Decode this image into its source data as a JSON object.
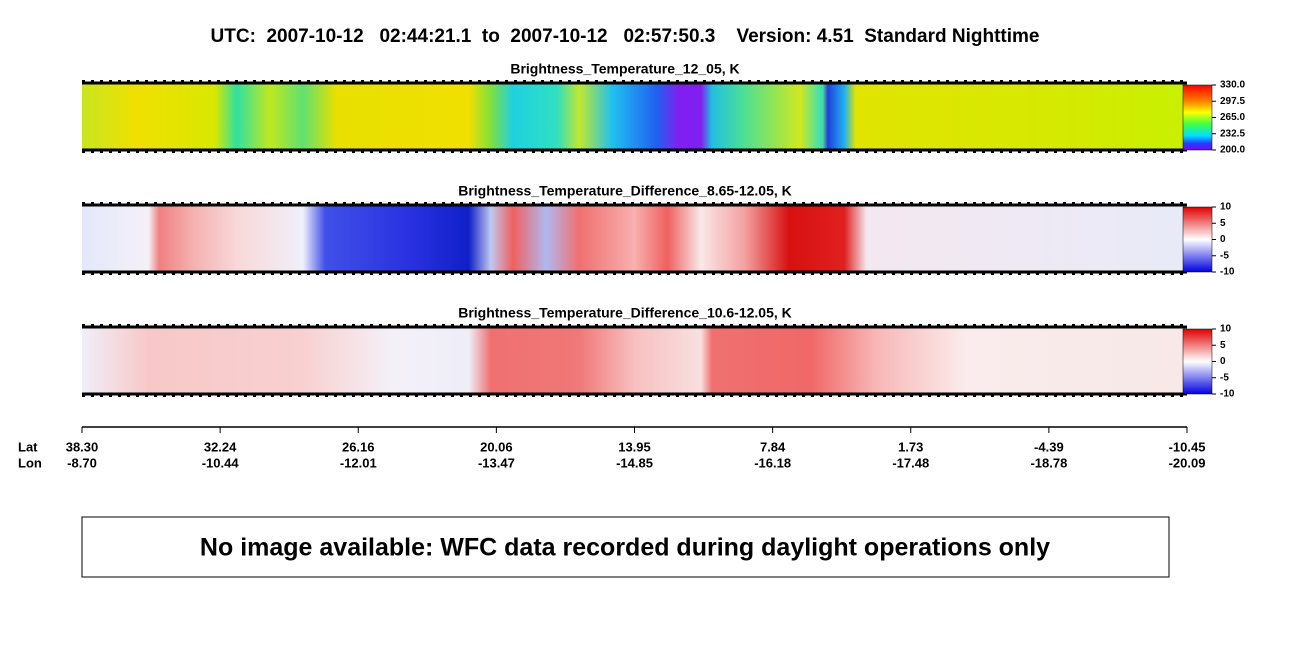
{
  "header": {
    "title": "UTC:  2007-10-12   02:44:21.1  to  2007-10-12   02:57:50.3    Version: 4.51  Standard Nighttime"
  },
  "panels": [
    {
      "title": "Brightness_Temperature_12_05, K",
      "colorbar": [
        "330.0",
        "297.5",
        "265.0",
        "232.5",
        "200.0"
      ]
    },
    {
      "title": "Brightness_Temperature_Difference_8.65-12.05, K",
      "colorbar": [
        "10",
        "5",
        "0",
        "-5",
        "-10"
      ]
    },
    {
      "title": "Brightness_Temperature_Difference_10.6-12.05, K",
      "colorbar": [
        "10",
        "5",
        "0",
        "-5",
        "-10"
      ]
    }
  ],
  "axis": {
    "lat_label": "Lat",
    "lon_label": "Lon",
    "ticks": [
      {
        "lat": "38.30",
        "lon": "-8.70"
      },
      {
        "lat": "32.24",
        "lon": "-10.44"
      },
      {
        "lat": "26.16",
        "lon": "-12.01"
      },
      {
        "lat": "20.06",
        "lon": "-13.47"
      },
      {
        "lat": "13.95",
        "lon": "-14.85"
      },
      {
        "lat": "7.84",
        "lon": "-16.18"
      },
      {
        "lat": "1.73",
        "lon": "-17.48"
      },
      {
        "lat": "-4.39",
        "lon": "-18.78"
      },
      {
        "lat": "-10.45",
        "lon": "-20.09"
      }
    ]
  },
  "notice": "No image available: WFC data recorded during daylight operations only"
}
